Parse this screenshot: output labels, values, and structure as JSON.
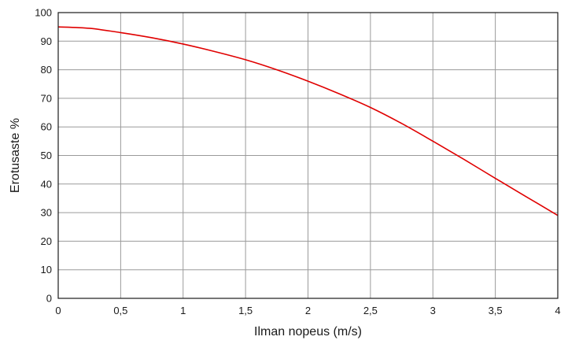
{
  "chart_data": {
    "type": "line",
    "title": "",
    "xlabel": "Ilman nopeus (m/s)",
    "ylabel": "Erotusaste %",
    "xlim": [
      0,
      4
    ],
    "ylim": [
      0,
      100
    ],
    "grid": true,
    "x_ticks": [
      0,
      0.5,
      1,
      1.5,
      2,
      2.5,
      3,
      3.5,
      4
    ],
    "x_tick_labels": [
      "0",
      "0,5",
      "1",
      "1,5",
      "2",
      "2,5",
      "3",
      "3,5",
      "4"
    ],
    "y_ticks": [
      0,
      10,
      20,
      30,
      40,
      50,
      60,
      70,
      80,
      90,
      100
    ],
    "y_tick_labels": [
      "0",
      "10",
      "20",
      "30",
      "40",
      "50",
      "60",
      "70",
      "80",
      "90",
      "100"
    ],
    "series": [
      {
        "color": "#e00000",
        "x": [
          0,
          0.25,
          0.5,
          0.75,
          1,
          1.25,
          1.5,
          1.75,
          2,
          2.25,
          2.5,
          2.75,
          3,
          3.25,
          3.5,
          3.75,
          4
        ],
        "y": [
          95,
          94.5,
          93,
          91.2,
          89,
          86.4,
          83.5,
          80,
          76,
          71.6,
          66.8,
          61.2,
          55,
          48.6,
          42,
          35.5,
          29
        ]
      }
    ]
  }
}
